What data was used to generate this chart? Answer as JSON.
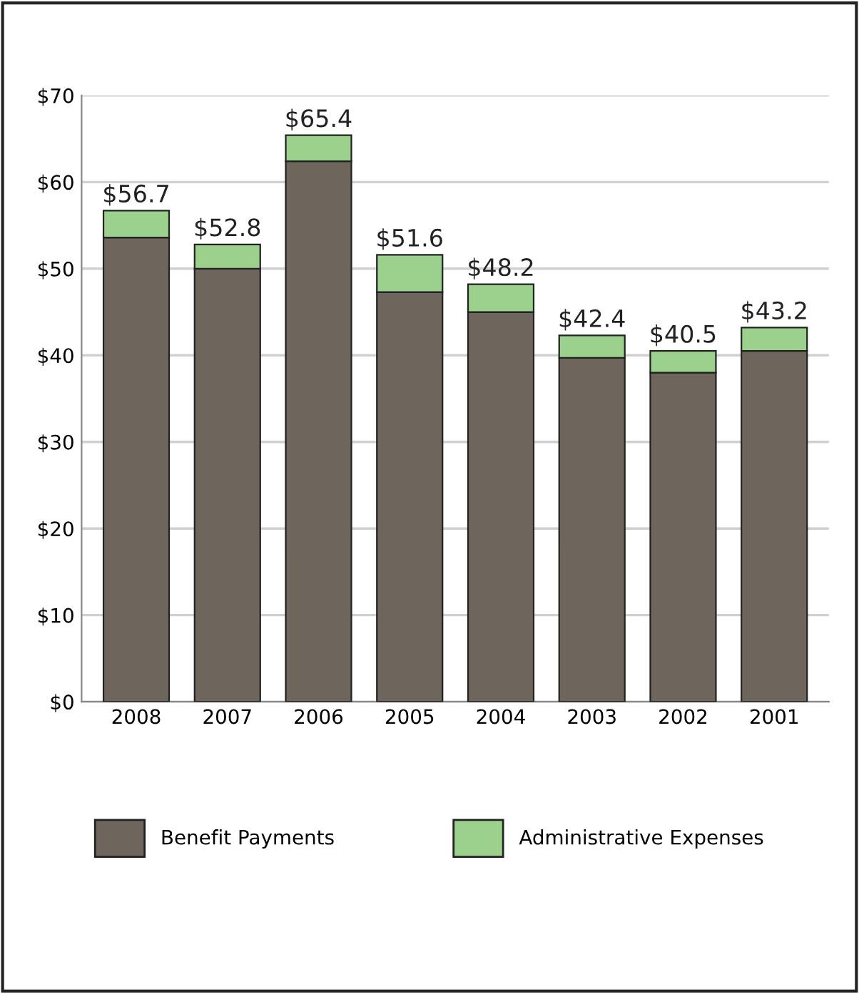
{
  "chart_data": {
    "type": "bar",
    "stacked": true,
    "categories": [
      "2008",
      "2007",
      "2006",
      "2005",
      "2004",
      "2003",
      "2002",
      "2001"
    ],
    "series": [
      {
        "name": "Benefit Payments",
        "color": "#6e665c",
        "values": [
          53.6,
          50.0,
          62.4,
          47.3,
          45.0,
          39.7,
          38.0,
          40.5
        ]
      },
      {
        "name": "Administrative Expenses",
        "color": "#9bd18d",
        "values": [
          3.1,
          2.8,
          3.0,
          4.3,
          3.2,
          2.6,
          2.5,
          2.7
        ]
      }
    ],
    "totals": [
      "$56.7",
      "$52.8",
      "$65.4",
      "$51.6",
      "$48.2",
      "$42.4",
      "$40.5",
      "$43.2"
    ],
    "ylim": [
      0,
      70
    ],
    "yticks": [
      {
        "value": 0,
        "label": "$0"
      },
      {
        "value": 10,
        "label": "$10"
      },
      {
        "value": 20,
        "label": "$20"
      },
      {
        "value": 30,
        "label": "$30"
      },
      {
        "value": 40,
        "label": "$40"
      },
      {
        "value": 50,
        "label": "$50"
      },
      {
        "value": 60,
        "label": "$60"
      },
      {
        "value": 70,
        "label": "$70"
      }
    ],
    "grid": "y",
    "legend": "bottom"
  }
}
